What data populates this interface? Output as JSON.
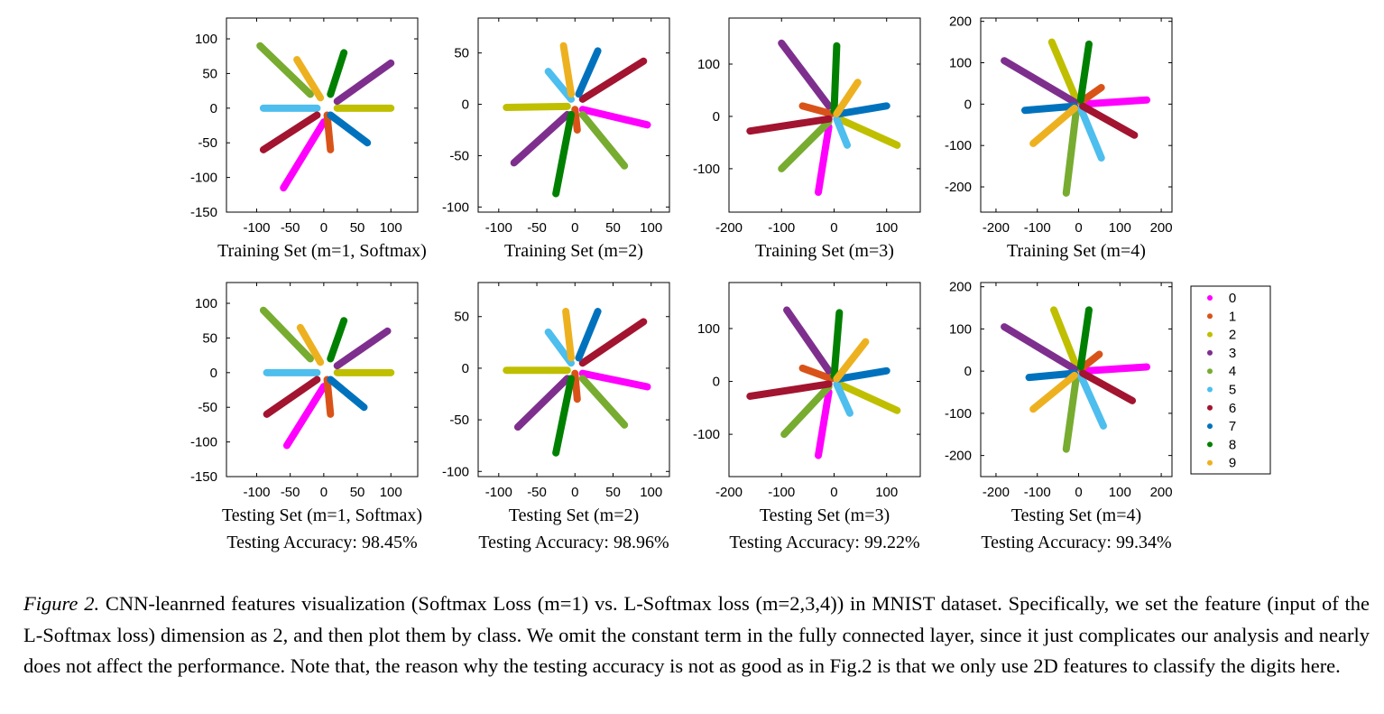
{
  "classes": [
    {
      "name": "0",
      "color": "#ff00ff"
    },
    {
      "name": "1",
      "color": "#d95319"
    },
    {
      "name": "2",
      "color": "#bfbf00"
    },
    {
      "name": "3",
      "color": "#7e2f8e"
    },
    {
      "name": "4",
      "color": "#77ac30"
    },
    {
      "name": "5",
      "color": "#4dbeee"
    },
    {
      "name": "6",
      "color": "#a2142f"
    },
    {
      "name": "7",
      "color": "#0072bd"
    },
    {
      "name": "8",
      "color": "#008000"
    },
    {
      "name": "9",
      "color": "#edb120"
    }
  ],
  "chart_data": [
    {
      "type": "scatter",
      "xlabel": "Training Set (m=1, Softmax)",
      "xlim": [
        -145,
        140
      ],
      "ylim": [
        -150,
        130
      ],
      "xticks": [
        -100,
        -50,
        0,
        50,
        100
      ],
      "yticks": [
        -150,
        -100,
        -50,
        0,
        50,
        100
      ],
      "series": [
        {
          "x": [
            0,
            -60
          ],
          "y": [
            -20,
            -115
          ]
        },
        {
          "x": [
            5,
            10
          ],
          "y": [
            -10,
            -60
          ]
        },
        {
          "x": [
            20,
            100
          ],
          "y": [
            0,
            0
          ]
        },
        {
          "x": [
            20,
            100
          ],
          "y": [
            10,
            65
          ]
        },
        {
          "x": [
            -20,
            -95
          ],
          "y": [
            20,
            90
          ]
        },
        {
          "x": [
            -10,
            -90
          ],
          "y": [
            0,
            0
          ]
        },
        {
          "x": [
            -10,
            -90
          ],
          "y": [
            -10,
            -60
          ]
        },
        {
          "x": [
            10,
            65
          ],
          "y": [
            -10,
            -50
          ]
        },
        {
          "x": [
            10,
            30
          ],
          "y": [
            20,
            80
          ]
        },
        {
          "x": [
            -5,
            -40
          ],
          "y": [
            15,
            70
          ]
        }
      ]
    },
    {
      "type": "scatter",
      "xlabel": "Training Set (m=2)",
      "xlim": [
        -127,
        124
      ],
      "ylim": [
        -105,
        84
      ],
      "xticks": [
        -100,
        -50,
        0,
        50,
        100
      ],
      "yticks": [
        -100,
        -50,
        0,
        50
      ],
      "series": [
        {
          "x": [
            10,
            95
          ],
          "y": [
            -5,
            -20
          ]
        },
        {
          "x": [
            0,
            3
          ],
          "y": [
            -5,
            -25
          ]
        },
        {
          "x": [
            -10,
            -90
          ],
          "y": [
            -2,
            -3
          ]
        },
        {
          "x": [
            -10,
            -80
          ],
          "y": [
            -10,
            -57
          ]
        },
        {
          "x": [
            10,
            65
          ],
          "y": [
            -10,
            -60
          ]
        },
        {
          "x": [
            -5,
            -35
          ],
          "y": [
            5,
            32
          ]
        },
        {
          "x": [
            10,
            90
          ],
          "y": [
            5,
            42
          ]
        },
        {
          "x": [
            5,
            30
          ],
          "y": [
            10,
            52
          ]
        },
        {
          "x": [
            -5,
            -25
          ],
          "y": [
            -10,
            -87
          ]
        },
        {
          "x": [
            -5,
            -15
          ],
          "y": [
            10,
            57
          ]
        }
      ]
    },
    {
      "type": "scatter",
      "xlabel": "Training Set (m=3)",
      "xlim": [
        -200,
        164
      ],
      "ylim": [
        -183,
        188
      ],
      "xticks": [
        -200,
        -100,
        0,
        100
      ],
      "yticks": [
        -100,
        0,
        100
      ],
      "series": [
        {
          "x": [
            -10,
            -30
          ],
          "y": [
            -20,
            -145
          ]
        },
        {
          "x": [
            -5,
            -60
          ],
          "y": [
            5,
            20
          ]
        },
        {
          "x": [
            10,
            120
          ],
          "y": [
            -5,
            -55
          ]
        },
        {
          "x": [
            -10,
            -100
          ],
          "y": [
            20,
            140
          ]
        },
        {
          "x": [
            -10,
            -100
          ],
          "y": [
            -10,
            -100
          ]
        },
        {
          "x": [
            5,
            25
          ],
          "y": [
            -5,
            -55
          ]
        },
        {
          "x": [
            -10,
            -160
          ],
          "y": [
            -5,
            -28
          ]
        },
        {
          "x": [
            10,
            100
          ],
          "y": [
            5,
            20
          ]
        },
        {
          "x": [
            0,
            5
          ],
          "y": [
            10,
            135
          ]
        },
        {
          "x": [
            5,
            45
          ],
          "y": [
            5,
            65
          ]
        }
      ]
    },
    {
      "type": "scatter",
      "xlabel": "Training Set (m=4)",
      "xlim": [
        -237,
        226
      ],
      "ylim": [
        -261,
        208
      ],
      "xticks": [
        -200,
        -100,
        0,
        100,
        200
      ],
      "yticks": [
        -200,
        -100,
        0,
        100,
        200
      ],
      "series": [
        {
          "x": [
            10,
            165
          ],
          "y": [
            0,
            10
          ]
        },
        {
          "x": [
            5,
            55
          ],
          "y": [
            5,
            40
          ]
        },
        {
          "x": [
            -5,
            -65
          ],
          "y": [
            10,
            150
          ]
        },
        {
          "x": [
            -10,
            -180
          ],
          "y": [
            5,
            105
          ]
        },
        {
          "x": [
            -5,
            -30
          ],
          "y": [
            -10,
            -215
          ]
        },
        {
          "x": [
            5,
            55
          ],
          "y": [
            -10,
            -130
          ]
        },
        {
          "x": [
            10,
            135
          ],
          "y": [
            -5,
            -75
          ]
        },
        {
          "x": [
            -10,
            -130
          ],
          "y": [
            -5,
            -15
          ]
        },
        {
          "x": [
            5,
            25
          ],
          "y": [
            10,
            145
          ]
        },
        {
          "x": [
            -10,
            -110
          ],
          "y": [
            -10,
            -95
          ]
        }
      ]
    },
    {
      "type": "scatter",
      "xlabel": "Testing Set (m=1, Softmax)",
      "annotation": "Testing Accuracy: 98.45%",
      "xlim": [
        -145,
        140
      ],
      "ylim": [
        -150,
        130
      ],
      "xticks": [
        -100,
        -50,
        0,
        50,
        100
      ],
      "yticks": [
        -150,
        -100,
        -50,
        0,
        50,
        100
      ],
      "series": [
        {
          "x": [
            0,
            -55
          ],
          "y": [
            -20,
            -105
          ]
        },
        {
          "x": [
            5,
            10
          ],
          "y": [
            -10,
            -60
          ]
        },
        {
          "x": [
            20,
            100
          ],
          "y": [
            0,
            0
          ]
        },
        {
          "x": [
            20,
            95
          ],
          "y": [
            10,
            60
          ]
        },
        {
          "x": [
            -20,
            -90
          ],
          "y": [
            20,
            90
          ]
        },
        {
          "x": [
            -10,
            -85
          ],
          "y": [
            0,
            0
          ]
        },
        {
          "x": [
            -10,
            -85
          ],
          "y": [
            -10,
            -60
          ]
        },
        {
          "x": [
            10,
            60
          ],
          "y": [
            -10,
            -50
          ]
        },
        {
          "x": [
            10,
            30
          ],
          "y": [
            20,
            75
          ]
        },
        {
          "x": [
            -5,
            -35
          ],
          "y": [
            15,
            65
          ]
        }
      ]
    },
    {
      "type": "scatter",
      "xlabel": "Testing Set (m=2)",
      "annotation": "Testing Accuracy: 98.96%",
      "xlim": [
        -127,
        124
      ],
      "ylim": [
        -105,
        83
      ],
      "xticks": [
        -100,
        -50,
        0,
        50,
        100
      ],
      "yticks": [
        -100,
        -50,
        0,
        50
      ],
      "series": [
        {
          "x": [
            10,
            95
          ],
          "y": [
            -5,
            -18
          ]
        },
        {
          "x": [
            0,
            3
          ],
          "y": [
            -5,
            -30
          ]
        },
        {
          "x": [
            -10,
            -90
          ],
          "y": [
            -2,
            -2
          ]
        },
        {
          "x": [
            -10,
            -75
          ],
          "y": [
            -10,
            -57
          ]
        },
        {
          "x": [
            10,
            65
          ],
          "y": [
            -10,
            -55
          ]
        },
        {
          "x": [
            -5,
            -35
          ],
          "y": [
            5,
            35
          ]
        },
        {
          "x": [
            10,
            90
          ],
          "y": [
            5,
            45
          ]
        },
        {
          "x": [
            5,
            30
          ],
          "y": [
            10,
            55
          ]
        },
        {
          "x": [
            -5,
            -25
          ],
          "y": [
            -10,
            -82
          ]
        },
        {
          "x": [
            -5,
            -12
          ],
          "y": [
            10,
            55
          ]
        }
      ]
    },
    {
      "type": "scatter",
      "xlabel": "Testing Set (m=3)",
      "annotation": "Testing Accuracy: 99.22%",
      "xlim": [
        -200,
        164
      ],
      "ylim": [
        -180,
        187
      ],
      "xticks": [
        -200,
        -100,
        0,
        100
      ],
      "yticks": [
        -100,
        0,
        100
      ],
      "series": [
        {
          "x": [
            -10,
            -30
          ],
          "y": [
            -20,
            -140
          ]
        },
        {
          "x": [
            -5,
            -60
          ],
          "y": [
            5,
            25
          ]
        },
        {
          "x": [
            10,
            120
          ],
          "y": [
            -5,
            -55
          ]
        },
        {
          "x": [
            -10,
            -90
          ],
          "y": [
            20,
            135
          ]
        },
        {
          "x": [
            -10,
            -95
          ],
          "y": [
            -10,
            -100
          ]
        },
        {
          "x": [
            5,
            30
          ],
          "y": [
            -5,
            -60
          ]
        },
        {
          "x": [
            -10,
            -160
          ],
          "y": [
            -5,
            -28
          ]
        },
        {
          "x": [
            10,
            100
          ],
          "y": [
            5,
            20
          ]
        },
        {
          "x": [
            0,
            10
          ],
          "y": [
            10,
            130
          ]
        },
        {
          "x": [
            5,
            60
          ],
          "y": [
            5,
            75
          ]
        }
      ]
    },
    {
      "type": "scatter",
      "xlabel": "Testing Set (m=4)",
      "annotation": "Testing Accuracy: 99.34%",
      "xlim": [
        -237,
        226
      ],
      "ylim": [
        -250,
        210
      ],
      "xticks": [
        -200,
        -100,
        0,
        100,
        200
      ],
      "yticks": [
        -200,
        -100,
        0,
        100,
        200
      ],
      "series": [
        {
          "x": [
            10,
            165
          ],
          "y": [
            0,
            10
          ]
        },
        {
          "x": [
            5,
            50
          ],
          "y": [
            5,
            40
          ]
        },
        {
          "x": [
            -5,
            -60
          ],
          "y": [
            10,
            145
          ]
        },
        {
          "x": [
            -10,
            -180
          ],
          "y": [
            5,
            105
          ]
        },
        {
          "x": [
            -5,
            -30
          ],
          "y": [
            -10,
            -185
          ]
        },
        {
          "x": [
            5,
            60
          ],
          "y": [
            -10,
            -130
          ]
        },
        {
          "x": [
            10,
            130
          ],
          "y": [
            -5,
            -70
          ]
        },
        {
          "x": [
            -10,
            -120
          ],
          "y": [
            -5,
            -15
          ]
        },
        {
          "x": [
            5,
            25
          ],
          "y": [
            10,
            145
          ]
        },
        {
          "x": [
            -10,
            -110
          ],
          "y": [
            -10,
            -90
          ]
        }
      ]
    }
  ],
  "caption": {
    "label": "Figure 2.",
    "text": " CNN-leanrned features visualization (Softmax Loss (m=1) vs.  L-Softmax loss (m=2,3,4)) in MNIST dataset.  Specifically, we set the feature (input of the L-Softmax loss) dimension as 2, and then plot them by class.  We omit the constant term in the fully connected layer, since it just complicates our analysis and nearly does not affect the performance. Note that, the reason why the testing accuracy is not as good as in Fig.2 is that we only use 2D features to classify the digits here."
  }
}
